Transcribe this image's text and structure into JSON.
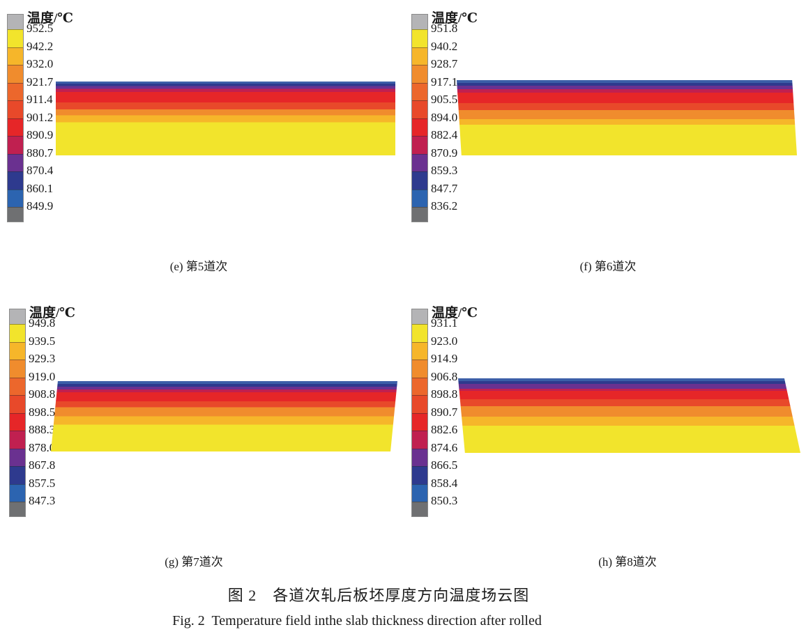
{
  "figure": {
    "caption_zh": "图 2　各道次轧后板坯厚度方向温度场云图",
    "caption_en": "Fig. 2  Temperature field inthe slab thickness direction after rolled"
  },
  "palette": {
    "legend_top_cap": "#b4b4b6",
    "legend_bottom_cap": "#6f7072",
    "legend_segments_top_to_bottom": [
      "#f2e42c",
      "#f6b62a",
      "#f08c2d",
      "#ec672c",
      "#e8492a",
      "#e62628",
      "#c02050",
      "#6a3190",
      "#2e3a8e",
      "#2c64b0"
    ],
    "slab_band_colors_top_to_bottom": [
      "#3c5fa8",
      "#2e3a8e",
      "#6a3190",
      "#c02050",
      "#e62628",
      "#e8492a",
      "#f08c2d",
      "#f6b62a",
      "#f2e42c"
    ]
  },
  "chart_data": [
    {
      "type": "heatmap",
      "title": "(e) 第5道次",
      "legend_title": "温度/℃",
      "units": "℃",
      "colorbar_ticks": [
        "952.5",
        "942.2",
        "932.0",
        "921.7",
        "911.4",
        "901.2",
        "890.9",
        "880.7",
        "870.4",
        "860.1",
        "849.9"
      ],
      "band_fractions_top_to_bottom": [
        0.03,
        0.033,
        0.038,
        0.04,
        0.14,
        0.095,
        0.08,
        0.095,
        0.449
      ]
    },
    {
      "type": "heatmap",
      "title": "(f) 第6道次",
      "legend_title": "温度/℃",
      "units": "℃",
      "colorbar_ticks": [
        "951.8",
        "940.2",
        "928.7",
        "917.1",
        "905.5",
        "894.0",
        "882.4",
        "870.9",
        "859.3",
        "847.7",
        "836.2"
      ],
      "band_fractions_top_to_bottom": [
        0.035,
        0.039,
        0.046,
        0.046,
        0.139,
        0.093,
        0.12,
        0.074,
        0.408
      ]
    },
    {
      "type": "heatmap",
      "title": "(g) 第7道次",
      "legend_title": "温度/℃",
      "units": "℃",
      "colorbar_ticks": [
        "949.8",
        "939.5",
        "929.3",
        "919.0",
        "908.8",
        "898.5",
        "888.3",
        "878.0",
        "867.8",
        "857.5",
        "847.3"
      ],
      "band_fractions_top_to_bottom": [
        0.038,
        0.041,
        0.04,
        0.04,
        0.13,
        0.08,
        0.13,
        0.12,
        0.381
      ]
    },
    {
      "type": "heatmap",
      "title": "(h) 第8道次",
      "legend_title": "温度/℃",
      "units": "℃",
      "colorbar_ticks": [
        "931.1",
        "923.0",
        "914.9",
        "906.8",
        "898.8",
        "890.7",
        "882.6",
        "874.6",
        "866.5",
        "858.4",
        "850.3"
      ],
      "band_fractions_top_to_bottom": [
        0.036,
        0.039,
        0.065,
        0.028,
        0.112,
        0.093,
        0.14,
        0.121,
        0.366
      ]
    }
  ]
}
